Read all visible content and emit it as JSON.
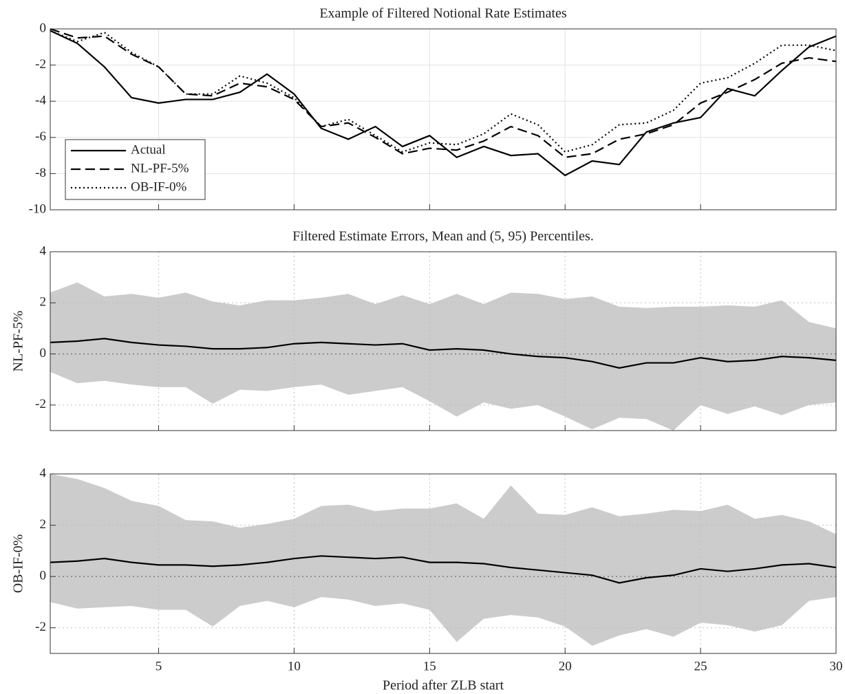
{
  "chart_data": [
    {
      "type": "line",
      "title": "Example of Filtered Notional Rate Estimates",
      "x": [
        1,
        2,
        3,
        4,
        5,
        6,
        7,
        8,
        9,
        10,
        11,
        12,
        13,
        14,
        15,
        16,
        17,
        18,
        19,
        20,
        21,
        22,
        23,
        24,
        25,
        26,
        27,
        28,
        29,
        30
      ],
      "xlim": [
        1,
        30
      ],
      "xticks": [
        5,
        10,
        15,
        20,
        25,
        30
      ],
      "ylim": [
        -10,
        0
      ],
      "yticks": [
        0,
        -2,
        -4,
        -6,
        -8,
        -10
      ],
      "grid": "solid",
      "legend": "lower left",
      "series": [
        {
          "name": "Actual",
          "color": "#000000",
          "dash": "solid",
          "values": [
            -0.1,
            -0.8,
            -2.1,
            -3.8,
            -4.1,
            -3.9,
            -3.9,
            -3.5,
            -2.5,
            -3.6,
            -5.5,
            -6.1,
            -5.4,
            -6.5,
            -5.9,
            -7.1,
            -6.5,
            -7.0,
            -6.9,
            -8.1,
            -7.3,
            -7.5,
            -5.7,
            -5.2,
            -4.9,
            -3.3,
            -3.7,
            -2.3,
            -1.0,
            -0.4
          ]
        },
        {
          "name": "NL-PF-5%",
          "color": "#000000",
          "dash": "dashed",
          "values": [
            0.0,
            -0.5,
            -0.4,
            -1.4,
            -2.1,
            -3.6,
            -3.7,
            -3.0,
            -3.2,
            -3.9,
            -5.4,
            -5.2,
            -6.0,
            -6.9,
            -6.6,
            -6.7,
            -6.2,
            -5.4,
            -5.9,
            -7.1,
            -6.9,
            -6.1,
            -5.8,
            -5.3,
            -4.1,
            -3.5,
            -2.8,
            -1.9,
            -1.6,
            -1.8
          ]
        },
        {
          "name": "OB-IF-0%",
          "color": "#000000",
          "dash": "dotted",
          "values": [
            -0.1,
            -0.7,
            -0.2,
            -1.3,
            -2.1,
            -3.6,
            -3.6,
            -2.6,
            -3.0,
            -3.8,
            -5.4,
            -5.0,
            -5.9,
            -6.8,
            -6.3,
            -6.4,
            -5.8,
            -4.7,
            -5.3,
            -6.8,
            -6.4,
            -5.3,
            -5.2,
            -4.5,
            -3.0,
            -2.7,
            -1.9,
            -0.9,
            -0.9,
            -1.2
          ]
        }
      ]
    },
    {
      "type": "line",
      "title": "Filtered Estimate Errors, Mean and (5, 95) Percentiles.",
      "ylabel": "NL-PF-5%",
      "x": [
        1,
        2,
        3,
        4,
        5,
        6,
        7,
        8,
        9,
        10,
        11,
        12,
        13,
        14,
        15,
        16,
        17,
        18,
        19,
        20,
        21,
        22,
        23,
        24,
        25,
        26,
        27,
        28,
        29,
        30
      ],
      "xlim": [
        1,
        30
      ],
      "xticks": [
        5,
        10,
        15,
        20,
        25,
        30
      ],
      "ylim": [
        -3,
        4
      ],
      "yticks": [
        -2,
        0,
        2,
        4
      ],
      "grid": "dotted",
      "band": {
        "color": "#cccccc",
        "upper": [
          2.4,
          2.8,
          2.25,
          2.35,
          2.2,
          2.4,
          2.05,
          1.9,
          2.1,
          2.1,
          2.2,
          2.35,
          1.95,
          2.3,
          1.95,
          2.35,
          1.95,
          2.4,
          2.35,
          2.15,
          2.25,
          1.85,
          1.8,
          1.85,
          1.85,
          1.9,
          1.85,
          2.1,
          1.25,
          1.0
        ],
        "lower": [
          -0.7,
          -1.15,
          -1.05,
          -1.2,
          -1.3,
          -1.3,
          -1.95,
          -1.4,
          -1.45,
          -1.3,
          -1.2,
          -1.6,
          -1.45,
          -1.3,
          -1.85,
          -2.45,
          -1.9,
          -2.15,
          -2.0,
          -2.45,
          -2.95,
          -2.5,
          -2.55,
          -3.0,
          -2.0,
          -2.35,
          -2.05,
          -2.4,
          -2.0,
          -1.9
        ]
      },
      "series": [
        {
          "color": "#000000",
          "dash": "solid",
          "values": [
            0.45,
            0.5,
            0.6,
            0.45,
            0.35,
            0.3,
            0.2,
            0.2,
            0.25,
            0.4,
            0.45,
            0.4,
            0.35,
            0.4,
            0.15,
            0.2,
            0.15,
            0.0,
            -0.1,
            -0.15,
            -0.3,
            -0.55,
            -0.35,
            -0.35,
            -0.15,
            -0.3,
            -0.25,
            -0.1,
            -0.15,
            -0.25
          ]
        }
      ]
    },
    {
      "type": "line",
      "ylabel": "OB-IF-0%",
      "xlabel": "Period after ZLB start",
      "x": [
        1,
        2,
        3,
        4,
        5,
        6,
        7,
        8,
        9,
        10,
        11,
        12,
        13,
        14,
        15,
        16,
        17,
        18,
        19,
        20,
        21,
        22,
        23,
        24,
        25,
        26,
        27,
        28,
        29,
        30
      ],
      "xlim": [
        1,
        30
      ],
      "xticks": [
        5,
        10,
        15,
        20,
        25,
        30
      ],
      "ylim": [
        -3,
        4
      ],
      "yticks": [
        -2,
        0,
        2,
        4
      ],
      "grid": "dotted",
      "band": {
        "color": "#cccccc",
        "upper": [
          4.0,
          3.8,
          3.45,
          2.95,
          2.75,
          2.2,
          2.15,
          1.9,
          2.05,
          2.25,
          2.75,
          2.8,
          2.55,
          2.65,
          2.65,
          2.85,
          2.25,
          3.55,
          2.45,
          2.4,
          2.7,
          2.35,
          2.45,
          2.6,
          2.55,
          2.8,
          2.25,
          2.4,
          2.15,
          1.65
        ],
        "lower": [
          -1.0,
          -1.25,
          -1.2,
          -1.15,
          -1.3,
          -1.3,
          -1.95,
          -1.15,
          -0.95,
          -1.2,
          -0.8,
          -0.9,
          -1.15,
          -1.05,
          -1.3,
          -2.55,
          -1.65,
          -1.5,
          -1.6,
          -1.95,
          -2.7,
          -2.3,
          -2.05,
          -2.35,
          -1.8,
          -1.9,
          -2.15,
          -1.9,
          -0.95,
          -0.8
        ]
      },
      "series": [
        {
          "color": "#000000",
          "dash": "solid",
          "values": [
            0.55,
            0.6,
            0.7,
            0.55,
            0.45,
            0.45,
            0.4,
            0.45,
            0.55,
            0.7,
            0.8,
            0.75,
            0.7,
            0.75,
            0.55,
            0.55,
            0.5,
            0.35,
            0.25,
            0.15,
            0.05,
            -0.25,
            -0.05,
            0.05,
            0.3,
            0.2,
            0.3,
            0.45,
            0.5,
            0.35
          ]
        }
      ]
    }
  ]
}
